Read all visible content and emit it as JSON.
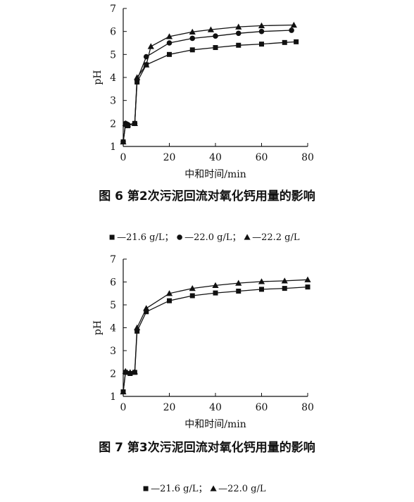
{
  "figures": [
    {
      "caption": "图 6   第2次污泥回流对氧化钙用量的影响",
      "legend": [
        {
          "marker": "square",
          "text": "—21.6 g/L；"
        },
        {
          "marker": "circle",
          "text": "—22.0 g/L；"
        },
        {
          "marker": "triangle",
          "text": "—22.2 g/L"
        }
      ]
    },
    {
      "caption": "图 7   第3次污泥回流对氧化钙用量的影响",
      "legend": [
        {
          "marker": "square",
          "text": "—21.6 g/L；"
        },
        {
          "marker": "triangle",
          "text": "—22.0 g/L"
        }
      ]
    }
  ],
  "chart_data": [
    {
      "type": "line",
      "xlabel": "中和时间/min",
      "ylabel": "pH",
      "xlim": [
        0,
        80
      ],
      "ylim": [
        1,
        7
      ],
      "xticks": [
        0,
        20,
        40,
        60,
        80
      ],
      "yticks": [
        1,
        2,
        3,
        4,
        5,
        6,
        7
      ],
      "grid": false,
      "series": [
        {
          "name": "21.6 g/L",
          "marker": "square",
          "x": [
            0,
            1,
            2,
            5,
            6,
            10,
            20,
            30,
            40,
            50,
            60,
            70,
            75
          ],
          "y": [
            1.2,
            1.95,
            1.9,
            2.0,
            3.8,
            4.55,
            5.0,
            5.2,
            5.3,
            5.4,
            5.45,
            5.52,
            5.55
          ]
        },
        {
          "name": "22.0 g/L",
          "marker": "circle",
          "x": [
            0,
            1,
            2,
            5,
            6,
            10,
            20,
            30,
            40,
            50,
            60,
            73
          ],
          "y": [
            1.2,
            2.0,
            1.95,
            2.0,
            3.9,
            4.9,
            5.5,
            5.7,
            5.8,
            5.92,
            6.0,
            6.05
          ]
        },
        {
          "name": "22.2 g/L",
          "marker": "triangle",
          "x": [
            0,
            1,
            2,
            5,
            6,
            10,
            12,
            20,
            30,
            38,
            50,
            60,
            74
          ],
          "y": [
            1.2,
            2.0,
            1.95,
            2.0,
            4.0,
            4.55,
            5.35,
            5.78,
            5.98,
            6.08,
            6.2,
            6.25,
            6.28
          ]
        }
      ]
    },
    {
      "type": "line",
      "xlabel": "中和时间/min",
      "ylabel": "pH",
      "xlim": [
        0,
        80
      ],
      "ylim": [
        1,
        7
      ],
      "xticks": [
        0,
        20,
        40,
        60,
        80
      ],
      "yticks": [
        1,
        2,
        3,
        4,
        5,
        6,
        7
      ],
      "grid": false,
      "series": [
        {
          "name": "21.6 g/L",
          "marker": "square",
          "x": [
            0,
            1,
            3,
            5,
            6,
            10,
            20,
            30,
            40,
            50,
            60,
            70,
            80
          ],
          "y": [
            1.2,
            2.05,
            2.0,
            2.05,
            3.85,
            4.7,
            5.18,
            5.4,
            5.52,
            5.6,
            5.68,
            5.72,
            5.78
          ]
        },
        {
          "name": "22.0 g/L",
          "marker": "triangle",
          "x": [
            0,
            1,
            3,
            5,
            6,
            10,
            20,
            30,
            40,
            50,
            60,
            70,
            80
          ],
          "y": [
            1.2,
            2.1,
            2.05,
            2.08,
            4.0,
            4.85,
            5.5,
            5.72,
            5.85,
            5.95,
            6.02,
            6.05,
            6.1
          ]
        }
      ]
    }
  ]
}
